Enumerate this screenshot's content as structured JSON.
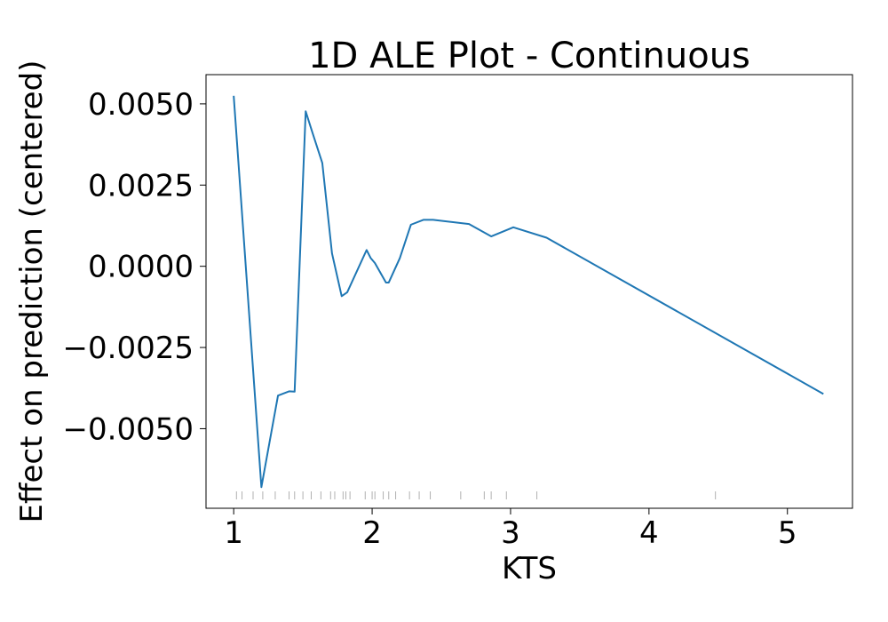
{
  "chart_data": {
    "type": "line",
    "title": "1D ALE Plot - Continuous",
    "xlabel": "KTS",
    "ylabel": "Effect on prediction (centered)",
    "xlim": [
      0.8,
      5.47
    ],
    "ylim": [
      -0.00745,
      0.0059
    ],
    "x_ticks": [
      1,
      2,
      3,
      4,
      5
    ],
    "x_tick_labels": [
      "1",
      "2",
      "3",
      "4",
      "5"
    ],
    "y_ticks": [
      0.005,
      0.0025,
      0.0,
      -0.0025,
      -0.005
    ],
    "y_tick_labels": [
      "0.0050",
      "0.0025",
      "0.0000",
      "−0.0025",
      "−0.0050"
    ],
    "grid": false,
    "legend": "none",
    "line_color": "#1f77b4",
    "rug_color": "#b0b0b0",
    "series": [
      {
        "x": [
          1.0,
          1.2,
          1.32,
          1.4,
          1.44,
          1.52,
          1.57,
          1.64,
          1.71,
          1.78,
          1.82,
          1.96,
          1.99,
          2.02,
          2.1,
          2.12,
          2.2,
          2.28,
          2.37,
          2.44,
          2.7,
          2.86,
          3.02,
          3.26,
          5.26
        ],
        "y": [
          0.00525,
          -0.0068,
          -0.00398,
          -0.00385,
          -0.00386,
          0.00477,
          0.0041,
          0.00318,
          0.0004,
          -0.00092,
          -0.0008,
          0.0005,
          0.00025,
          0.0001,
          -0.0005,
          -0.0005,
          0.00025,
          0.00128,
          0.00143,
          0.00143,
          0.0013,
          0.00092,
          0.0012,
          0.00088,
          -0.00393
        ]
      }
    ],
    "rug": [
      1.02,
      1.06,
      1.14,
      1.21,
      1.3,
      1.4,
      1.44,
      1.5,
      1.56,
      1.63,
      1.7,
      1.73,
      1.79,
      1.81,
      1.84,
      1.95,
      2.0,
      2.02,
      2.08,
      2.12,
      2.17,
      2.27,
      2.34,
      2.42,
      2.64,
      2.81,
      2.86,
      2.97,
      3.19,
      4.48
    ]
  }
}
